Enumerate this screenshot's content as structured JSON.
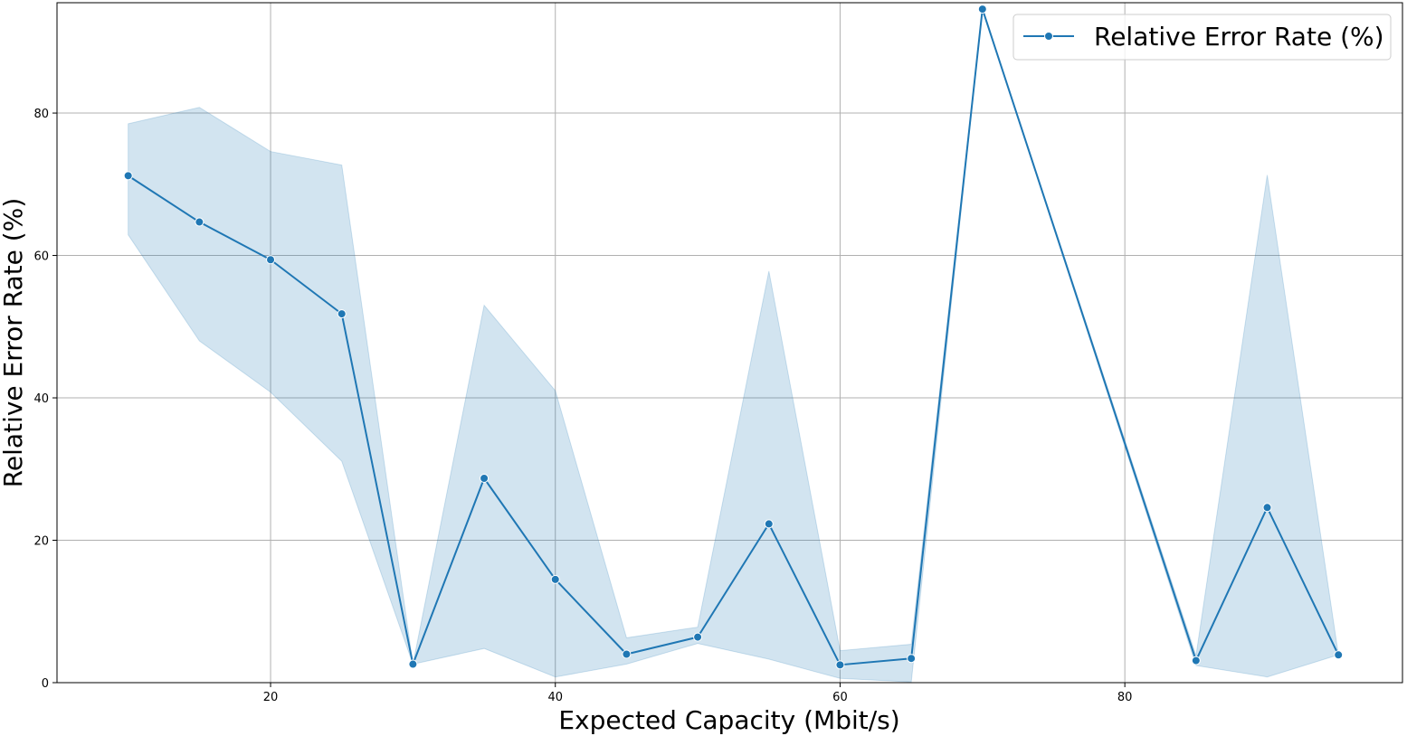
{
  "chart_data": {
    "type": "line",
    "title": "",
    "xlabel": "Expected Capacity (Mbit/s)",
    "ylabel": "Relative Error Rate (%)",
    "xlim": [
      5,
      99.5
    ],
    "ylim": [
      0,
      95.5
    ],
    "xticks": [
      20,
      40,
      60,
      80
    ],
    "yticks": [
      0,
      20,
      40,
      60,
      80
    ],
    "grid": true,
    "legend_position": "top-right",
    "colors": {
      "line": "#1f77b4",
      "band": "#1f77b4",
      "grid": "#b0b0b0"
    },
    "series": [
      {
        "name": "Relative Error Rate (%)",
        "x": [
          10,
          15,
          20,
          25,
          30,
          35,
          40,
          45,
          50,
          55,
          60,
          65,
          70,
          85,
          90,
          95
        ],
        "y": [
          71.2,
          64.7,
          59.4,
          51.8,
          2.6,
          28.7,
          14.5,
          4.0,
          6.4,
          22.3,
          2.5,
          3.4,
          94.6,
          3.1,
          24.6,
          3.9
        ],
        "ci_lower": [
          62.9,
          48.0,
          40.8,
          31.1,
          2.6,
          4.8,
          0.8,
          2.6,
          5.5,
          3.3,
          0.6,
          0.1,
          94.6,
          2.4,
          0.8,
          3.9
        ],
        "ci_upper": [
          78.5,
          80.8,
          74.6,
          72.7,
          2.6,
          53.0,
          41.0,
          6.3,
          7.8,
          57.8,
          4.5,
          5.4,
          94.6,
          3.8,
          71.3,
          3.9
        ]
      }
    ]
  }
}
